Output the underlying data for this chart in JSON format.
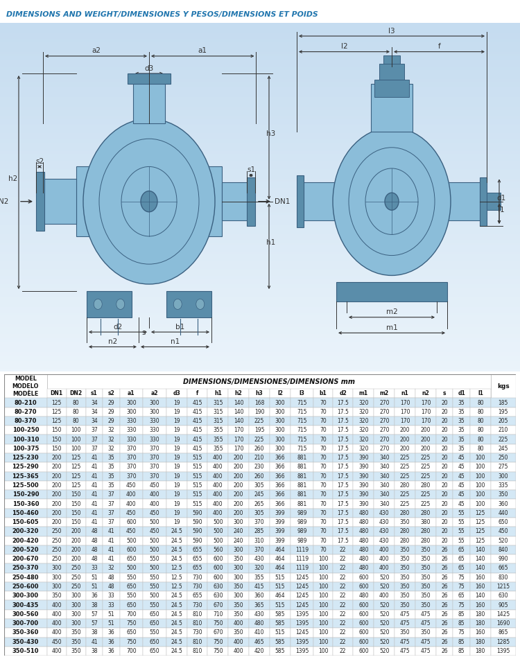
{
  "title": "DIMENSIONS AND WEIGHT/DIMENSIONES Y PESOS/DIMENSIONS ET POIDS",
  "title_color": "#2176AE",
  "subheader": "DIMENSIONS/DIMENSIONES/DIMENSIONS mm",
  "col_labels": [
    "DN1",
    "DN2",
    "s1",
    "s2",
    "a1",
    "a2",
    "d3",
    "f",
    "h1",
    "h2",
    "h3",
    "l2",
    "l3",
    "b1",
    "d2",
    "m1",
    "m2",
    "n1",
    "n2",
    "s",
    "d1",
    "l1"
  ],
  "rows": [
    [
      "80-210",
      125,
      80,
      34,
      29,
      300,
      300,
      19,
      415,
      315,
      140,
      168,
      300,
      715,
      70,
      17.5,
      320,
      270,
      170,
      170,
      20,
      35,
      80,
      185
    ],
    [
      "80-270",
      125,
      80,
      34,
      29,
      300,
      300,
      19,
      415,
      315,
      140,
      190,
      300,
      715,
      70,
      17.5,
      320,
      270,
      170,
      170,
      20,
      35,
      80,
      195
    ],
    [
      "80-370",
      125,
      80,
      34,
      29,
      330,
      330,
      19,
      415,
      315,
      140,
      225,
      300,
      715,
      70,
      17.5,
      320,
      270,
      170,
      170,
      20,
      35,
      80,
      205
    ],
    [
      "100-250",
      150,
      100,
      37,
      32,
      330,
      330,
      19,
      415,
      355,
      170,
      195,
      300,
      715,
      70,
      17.5,
      320,
      270,
      200,
      200,
      20,
      35,
      80,
      210
    ],
    [
      "100-310",
      150,
      100,
      37,
      32,
      330,
      330,
      19,
      415,
      355,
      170,
      225,
      300,
      715,
      70,
      17.5,
      320,
      270,
      200,
      200,
      20,
      35,
      80,
      225
    ],
    [
      "100-375",
      150,
      100,
      37,
      32,
      370,
      370,
      19,
      415,
      355,
      170,
      260,
      300,
      715,
      70,
      17.5,
      320,
      270,
      200,
      200,
      20,
      35,
      80,
      245
    ],
    [
      "125-230",
      200,
      125,
      41,
      35,
      370,
      370,
      19,
      515,
      400,
      200,
      210,
      366,
      881,
      70,
      17.5,
      390,
      340,
      225,
      225,
      20,
      45,
      100,
      250
    ],
    [
      "125-290",
      200,
      125,
      41,
      35,
      370,
      370,
      19,
      515,
      400,
      200,
      230,
      366,
      881,
      70,
      17.5,
      390,
      340,
      225,
      225,
      20,
      45,
      100,
      275
    ],
    [
      "125-365",
      200,
      125,
      41,
      35,
      370,
      370,
      19,
      515,
      400,
      200,
      260,
      366,
      881,
      70,
      17.5,
      390,
      340,
      225,
      225,
      20,
      45,
      100,
      300
    ],
    [
      "125-500",
      200,
      125,
      41,
      35,
      450,
      450,
      19,
      515,
      400,
      200,
      305,
      366,
      881,
      70,
      17.5,
      390,
      340,
      280,
      280,
      20,
      45,
      100,
      335
    ],
    [
      "150-290",
      200,
      150,
      41,
      37,
      400,
      400,
      19,
      515,
      400,
      200,
      245,
      366,
      881,
      70,
      17.5,
      390,
      340,
      225,
      225,
      20,
      45,
      100,
      350
    ],
    [
      "150-360",
      200,
      150,
      41,
      37,
      400,
      400,
      19,
      515,
      400,
      200,
      265,
      366,
      881,
      70,
      17.5,
      390,
      340,
      225,
      225,
      20,
      45,
      100,
      360
    ],
    [
      "150-460",
      200,
      150,
      41,
      37,
      450,
      450,
      19,
      590,
      400,
      200,
      305,
      399,
      989,
      70,
      17.5,
      480,
      430,
      280,
      280,
      20,
      55,
      125,
      440
    ],
    [
      "150-605",
      200,
      150,
      41,
      37,
      600,
      500,
      19,
      590,
      500,
      300,
      370,
      399,
      989,
      70,
      17.5,
      480,
      430,
      350,
      380,
      20,
      55,
      125,
      650
    ],
    [
      "200-320",
      250,
      200,
      48,
      41,
      450,
      450,
      24.5,
      590,
      500,
      240,
      285,
      399,
      989,
      70,
      17.5,
      480,
      430,
      280,
      280,
      20,
      55,
      125,
      450
    ],
    [
      "200-420",
      250,
      200,
      48,
      41,
      500,
      500,
      24.5,
      590,
      500,
      240,
      310,
      399,
      989,
      70,
      17.5,
      480,
      430,
      280,
      280,
      20,
      55,
      125,
      520
    ],
    [
      "200-520",
      250,
      200,
      48,
      41,
      600,
      500,
      24.5,
      655,
      560,
      300,
      370,
      464,
      1119,
      70,
      22,
      480,
      400,
      350,
      350,
      26,
      65,
      140,
      840
    ],
    [
      "200-670",
      250,
      200,
      48,
      41,
      650,
      550,
      24.5,
      655,
      600,
      350,
      430,
      464,
      1119,
      100,
      22,
      480,
      400,
      350,
      350,
      26,
      65,
      140,
      990
    ],
    [
      "250-370",
      300,
      250,
      33,
      32,
      500,
      500,
      12.5,
      655,
      600,
      300,
      320,
      464,
      1119,
      100,
      22,
      480,
      400,
      350,
      350,
      26,
      65,
      140,
      665
    ],
    [
      "250-480",
      300,
      250,
      51,
      48,
      550,
      550,
      12.5,
      730,
      600,
      300,
      355,
      515,
      1245,
      100,
      22,
      600,
      520,
      350,
      350,
      26,
      75,
      160,
      830
    ],
    [
      "250-600",
      300,
      250,
      51,
      48,
      650,
      550,
      12.5,
      730,
      630,
      350,
      415,
      515,
      1245,
      100,
      22,
      600,
      520,
      350,
      350,
      26,
      75,
      160,
      1215
    ],
    [
      "300-300",
      350,
      300,
      36,
      33,
      550,
      500,
      24.5,
      655,
      630,
      300,
      360,
      464,
      1245,
      100,
      22,
      480,
      400,
      350,
      350,
      26,
      65,
      140,
      630
    ],
    [
      "300-435",
      400,
      300,
      38,
      33,
      650,
      550,
      24.5,
      730,
      670,
      350,
      365,
      515,
      1245,
      100,
      22,
      600,
      520,
      350,
      350,
      26,
      75,
      160,
      905
    ],
    [
      "300-560",
      400,
      300,
      57,
      51,
      700,
      650,
      24.5,
      810,
      710,
      350,
      430,
      585,
      1395,
      100,
      22,
      600,
      520,
      475,
      475,
      26,
      85,
      180,
      1425
    ],
    [
      "300-700",
      400,
      300,
      57,
      51,
      750,
      650,
      24.5,
      810,
      750,
      400,
      480,
      585,
      1395,
      100,
      22,
      600,
      520,
      475,
      475,
      26,
      85,
      180,
      1690
    ],
    [
      "350-360",
      400,
      350,
      38,
      36,
      650,
      550,
      24.5,
      730,
      670,
      350,
      410,
      515,
      1245,
      100,
      22,
      600,
      520,
      350,
      350,
      26,
      75,
      160,
      865
    ],
    [
      "350-430",
      450,
      350,
      41,
      36,
      750,
      650,
      24.5,
      810,
      750,
      400,
      465,
      585,
      1395,
      100,
      22,
      600,
      520,
      475,
      475,
      26,
      85,
      180,
      1285
    ],
    [
      "350-510",
      400,
      350,
      38,
      36,
      700,
      650,
      24.5,
      810,
      750,
      400,
      420,
      585,
      1395,
      100,
      22,
      600,
      520,
      475,
      475,
      26,
      85,
      180,
      1395
    ]
  ],
  "bg_color_even": "#FFFFFF",
  "bg_color_odd": "#D4E8F5",
  "header_bg": "#FFFFFF",
  "border_color": "#BBBBBB",
  "diagram_bg_top": "#C8DFF0",
  "diagram_bg_bot": "#E8F4FF",
  "dim_line_color": "#333333",
  "pump_fill": "#8BBDD9",
  "pump_dark": "#5A8DAA",
  "pump_light": "#B8D8EE",
  "pump_edge": "#3A6080"
}
